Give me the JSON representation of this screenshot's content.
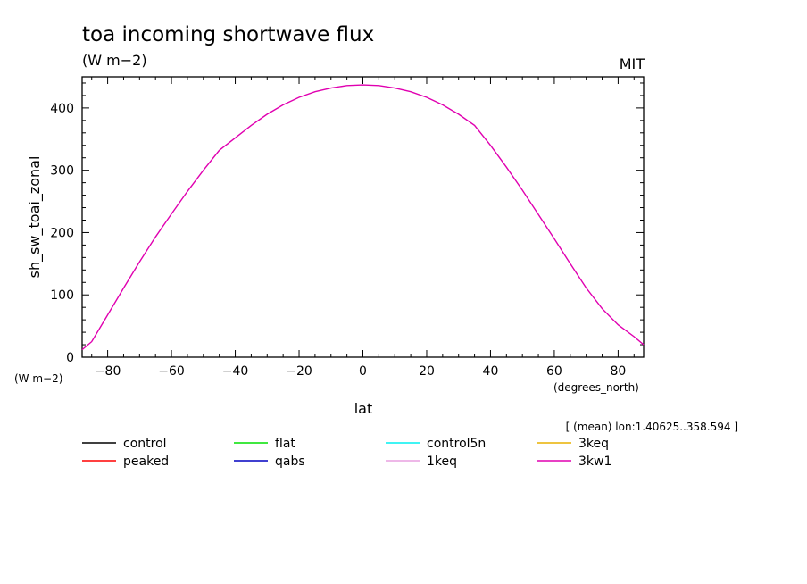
{
  "header": {
    "title": "toa incoming shortwave flux",
    "units": "(W m−2)",
    "institution": "MIT",
    "y_units_note": "(W m−2)",
    "x_units_note": "(degrees_north)",
    "averaging_note": "[ (mean) lon:1.40625..358.594 ]"
  },
  "chart_data": {
    "type": "line",
    "xlabel": "lat",
    "ylabel": "sh_sw_toai_zonal",
    "xlim": [
      -88,
      88
    ],
    "ylim": [
      0,
      450
    ],
    "xticks": [
      -80,
      -60,
      -40,
      -20,
      0,
      20,
      40,
      60,
      80
    ],
    "xtick_labels": [
      "−80",
      "−60",
      "−40",
      "−20",
      "0",
      "20",
      "40",
      "60",
      "80"
    ],
    "yticks": [
      0,
      100,
      200,
      300,
      400
    ],
    "ytick_labels": [
      "0",
      "100",
      "200",
      "300",
      "400"
    ],
    "grid": false,
    "legend_position": "bottom",
    "series": [
      {
        "name": "control",
        "color": "#000000",
        "values": []
      },
      {
        "name": "flat",
        "color": "#00e000",
        "values": []
      },
      {
        "name": "control5n",
        "color": "#00f0f0",
        "values": []
      },
      {
        "name": "3keq",
        "color": "#e8b000",
        "values": []
      },
      {
        "name": "peaked",
        "color": "#ff0000",
        "values": []
      },
      {
        "name": "qabs",
        "color": "#0000c0",
        "values": []
      },
      {
        "name": "1keq",
        "color": "#e8a0e0",
        "values": []
      },
      {
        "name": "3kw1",
        "color": "#e000b0",
        "x": [
          -88,
          -85,
          -80,
          -75,
          -70,
          -65,
          -60,
          -55,
          -50,
          -45,
          -40,
          -35,
          -30,
          -25,
          -20,
          -15,
          -10,
          -5,
          0,
          5,
          10,
          15,
          20,
          25,
          30,
          35,
          40,
          45,
          50,
          55,
          60,
          65,
          70,
          75,
          80,
          85,
          88
        ],
        "values": [
          12,
          25,
          68,
          111,
          153,
          193,
          230,
          266,
          300,
          332,
          352,
          372,
          390,
          405,
          417,
          426,
          432,
          436,
          437,
          436,
          432,
          426,
          417,
          405,
          390,
          372,
          340,
          305,
          268,
          229,
          190,
          150,
          111,
          78,
          52,
          33,
          20
        ]
      }
    ]
  }
}
